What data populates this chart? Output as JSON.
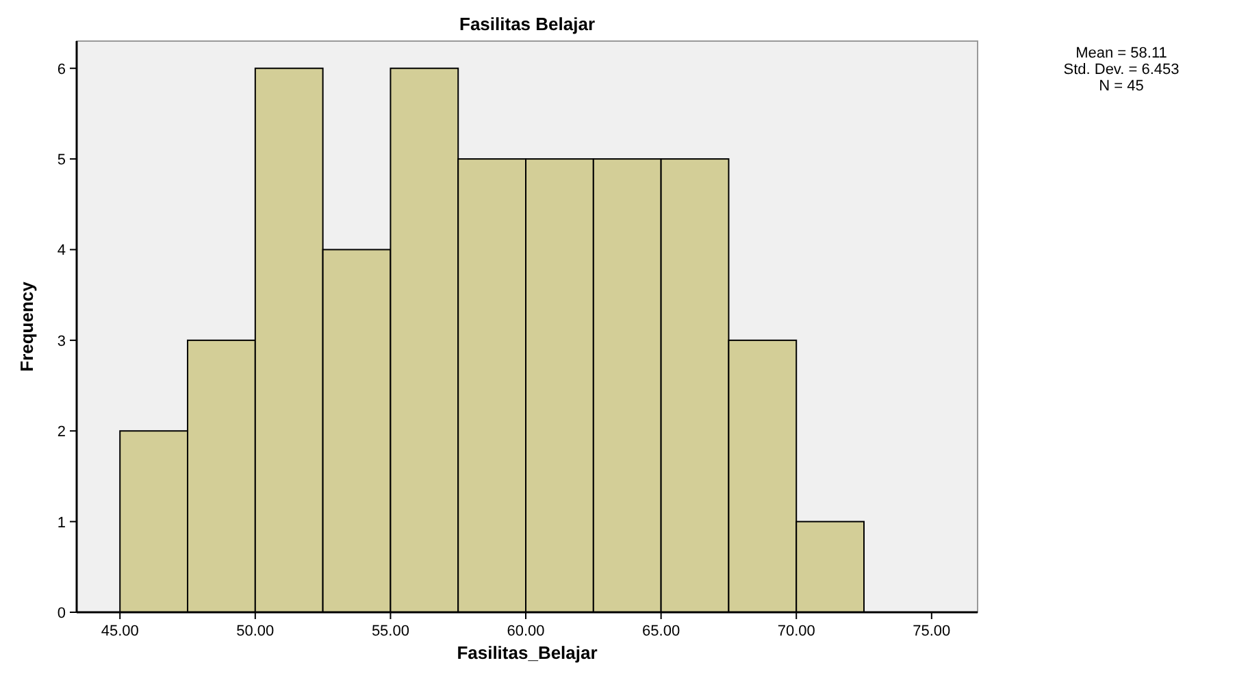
{
  "chart_data": {
    "type": "histogram",
    "title": "Fasilitas Belajar",
    "xlabel": "Fasilitas_Belajar",
    "ylabel": "Frequency",
    "bins": [
      45,
      47.5,
      50,
      52.5,
      55,
      57.5,
      60,
      62.5,
      65,
      67.5,
      70,
      72.5
    ],
    "values": [
      2,
      3,
      6,
      4,
      6,
      5,
      5,
      5,
      5,
      3,
      1
    ],
    "color": "#d3ce97",
    "xlim": [
      43.4,
      76.7
    ],
    "xticks": [
      {
        "value": 45,
        "label": "45.00"
      },
      {
        "value": 50,
        "label": "50.00"
      },
      {
        "value": 55,
        "label": "55.00"
      },
      {
        "value": 60,
        "label": "60.00"
      },
      {
        "value": 65,
        "label": "65.00"
      },
      {
        "value": 70,
        "label": "70.00"
      },
      {
        "value": 75,
        "label": "75.00"
      }
    ],
    "ylim": [
      0,
      6.3
    ],
    "yticks": [
      0,
      1,
      2,
      3,
      4,
      5,
      6
    ],
    "annotations": [
      "Mean = 58.11",
      "Std. Dev. = 6.453",
      "N = 45"
    ],
    "grid": false
  }
}
